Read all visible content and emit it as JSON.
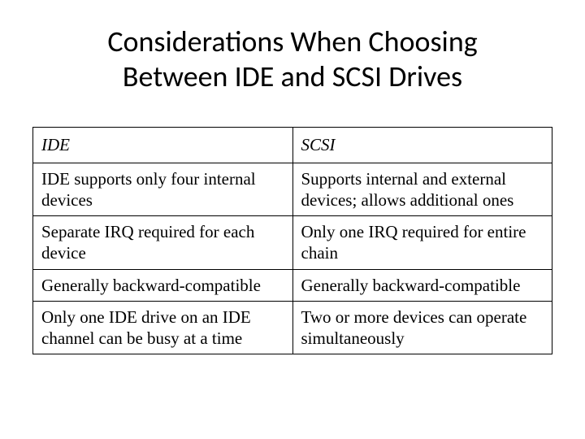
{
  "title_line1": "Considerations When Choosing",
  "title_line2": "Between IDE and SCSI Drives",
  "table": {
    "columns": [
      "IDE",
      "SCSI"
    ],
    "rows": [
      [
        "IDE supports only four internal devices",
        "Supports internal and external devices; allows additional ones"
      ],
      [
        "Separate IRQ required for each device",
        "Only one IRQ required for entire chain"
      ],
      [
        "Generally backward-compatible",
        "Generally backward-compatible"
      ],
      [
        "Only one IDE drive on an IDE channel can be busy at a time",
        "Two or more devices can operate simultaneously"
      ]
    ],
    "border_color": "#000000",
    "background_color": "#ffffff",
    "header_font_style": "italic",
    "cell_fontsize": 21,
    "title_fontsize": 36,
    "title_font_family": "Calibri"
  }
}
